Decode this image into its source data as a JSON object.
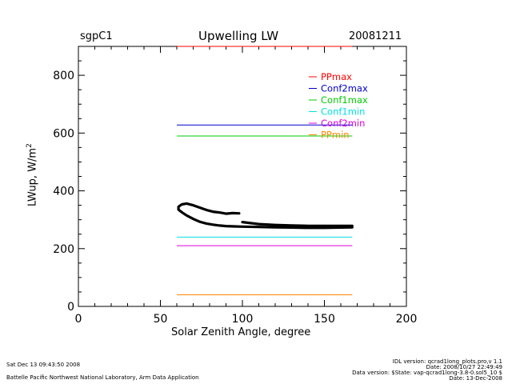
{
  "header": {
    "site": "sgpC1",
    "title": "Upwelling LW",
    "date": "20081211"
  },
  "footer": {
    "timestamp": "Sat Dec 13 09:43:50 2008",
    "org": "Battelle Pacific Northwest National Laboratory, Arm Data Application",
    "idl_version": "IDL version: qcrad1long_plots.pro,v 1.1",
    "idl_date": "Date: 2008/10/27 22:49:49",
    "data_version": "Data version: $State: vap-qcrad1long-3.8-0.sol5_10 $",
    "data_date": "Date: 13-Dec-2008"
  },
  "chart_data": {
    "type": "line",
    "title": "Upwelling LW",
    "xlabel": "Solar Zenith Angle, degree",
    "ylabel": "LWup, W/m^2",
    "xlim": [
      0,
      200
    ],
    "ylim": [
      0,
      900
    ],
    "xticks": [
      0,
      50,
      100,
      150,
      200
    ],
    "yticks": [
      200,
      400,
      600,
      800
    ],
    "grid": false,
    "legend_position": "top-right",
    "series": [
      {
        "name": "PPmax",
        "color": "#ff0000",
        "x": [
          60,
          167
        ],
        "y": [
          900,
          900
        ]
      },
      {
        "name": "Conf2max",
        "color": "#0000cc",
        "x": [
          60,
          167
        ],
        "y": [
          628,
          628
        ]
      },
      {
        "name": "Conf1max",
        "color": "#00cc00",
        "x": [
          60,
          167
        ],
        "y": [
          590,
          590
        ]
      },
      {
        "name": "Conf1min",
        "color": "#00e0e0",
        "x": [
          60,
          167
        ],
        "y": [
          240,
          240
        ]
      },
      {
        "name": "Conf2min",
        "color": "#e000e0",
        "x": [
          60,
          167
        ],
        "y": [
          210,
          210
        ]
      },
      {
        "name": "PPmin",
        "color": "#ff8800",
        "x": [
          60,
          167
        ],
        "y": [
          40,
          40
        ]
      }
    ],
    "observations": {
      "color": "#000000",
      "segments": [
        {
          "x": [
            98,
            94,
            90,
            86,
            82,
            78,
            74,
            70,
            66,
            63,
            61,
            61,
            63,
            66,
            70,
            74,
            78,
            82,
            86,
            90,
            95,
            100,
            110,
            120,
            130,
            140,
            150,
            160,
            167
          ],
          "y": [
            322,
            323,
            321,
            325,
            328,
            334,
            342,
            350,
            356,
            353,
            345,
            335,
            326,
            315,
            303,
            293,
            287,
            283,
            280,
            278,
            277,
            276,
            275,
            274,
            273,
            272,
            272,
            273,
            274
          ]
        },
        {
          "x": [
            100,
            110,
            120,
            130,
            140,
            150,
            160,
            167
          ],
          "y": [
            292,
            285,
            282,
            280,
            279,
            279,
            279,
            279
          ]
        }
      ]
    }
  }
}
